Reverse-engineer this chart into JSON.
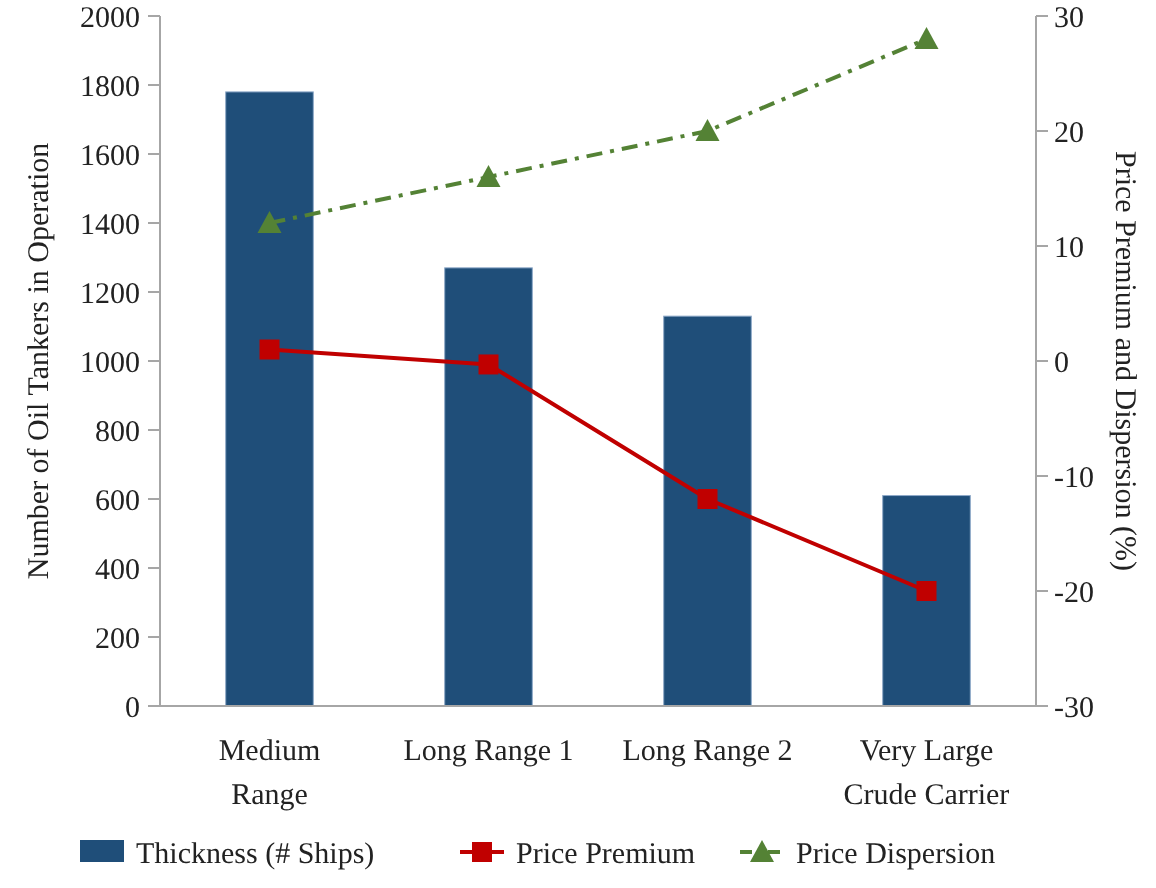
{
  "chart_data": {
    "type": "bar",
    "categories": [
      "Medium\nRange",
      "Long Range 1",
      "Long Range 2",
      "Very Large\nCrude Carrier"
    ],
    "ylabel": "Number of Oil Tankers in Operation",
    "y2label": "Price Premium and Dispersion (%)",
    "ylim": [
      0,
      2000
    ],
    "yticks": [
      0,
      200,
      400,
      600,
      800,
      1000,
      1200,
      1400,
      1600,
      1800,
      2000
    ],
    "y2lim": [
      -30,
      30
    ],
    "y2ticks": [
      -30,
      -20,
      -10,
      0,
      10,
      20,
      30
    ],
    "legend": "bottom",
    "series": [
      {
        "name": "Thickness (# Ships)",
        "color": "#1f4e79",
        "values": [
          1780,
          1270,
          1130,
          610
        ]
      },
      {
        "name": "Price Premium",
        "type": "line",
        "axis": "y2",
        "color": "#c00000",
        "marker": "square",
        "line_style": "solid",
        "values": [
          1,
          -0.3,
          -12,
          -20
        ]
      },
      {
        "name": "Price Dispersion",
        "type": "line",
        "axis": "y2",
        "color": "#548235",
        "marker": "triangle",
        "line_style": "dashed",
        "values": [
          12,
          16,
          20,
          28
        ]
      }
    ]
  }
}
